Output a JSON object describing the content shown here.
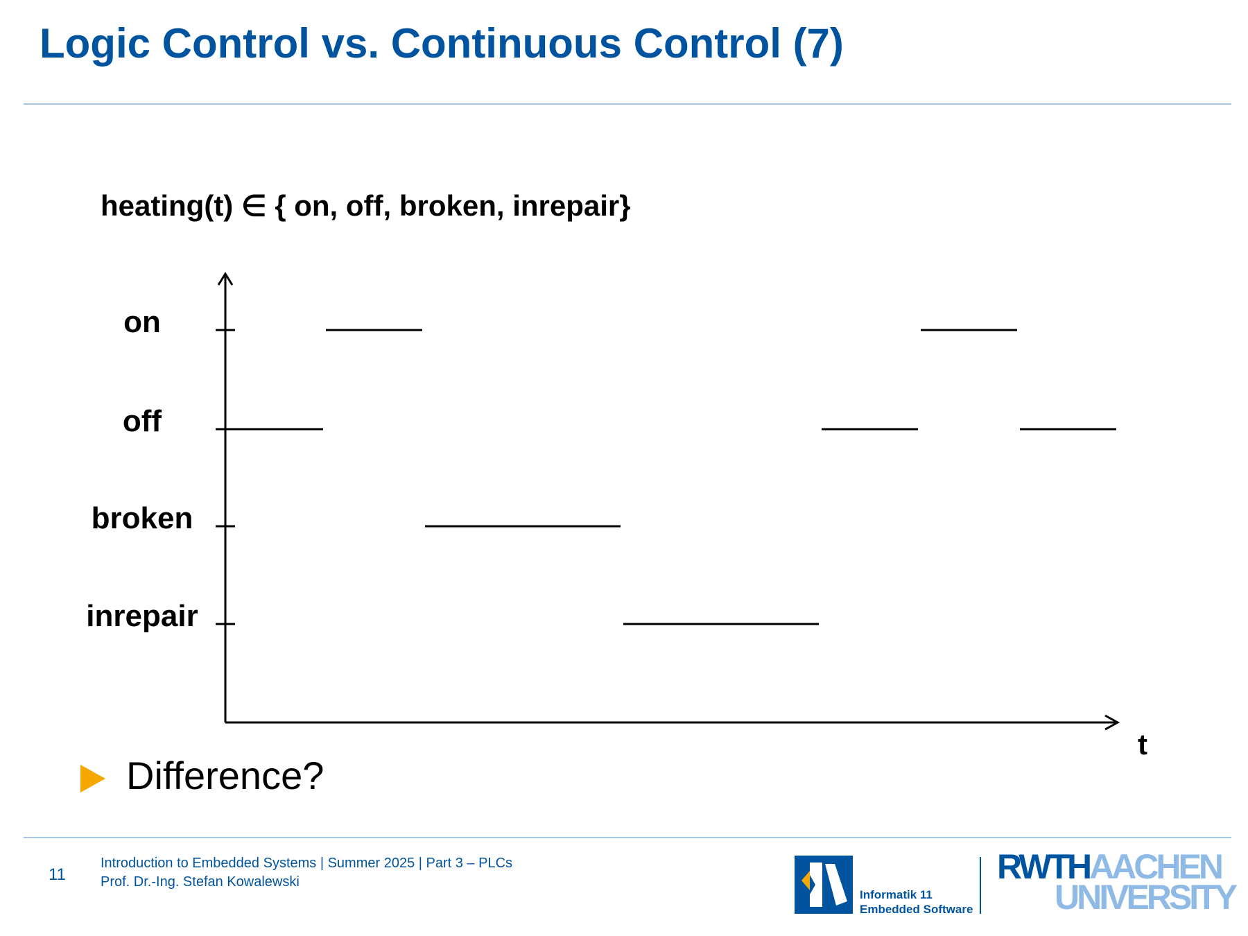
{
  "slide": {
    "title": "Logic Control vs. Continuous Control (7)",
    "formula": "heating(t) ∈ { on, off, broken, inrepair}",
    "bullet_text": "Difference?"
  },
  "footer": {
    "page_number": "11",
    "course_line": "Introduction to Embedded Systems | Summer 2025 | Part 3 – PLCs",
    "author_line": "Prof. Dr.-Ing. Stefan Kowalewski",
    "institute_line1": "Informatik 11",
    "institute_line2": "Embedded Software",
    "university_word1": "RWTH",
    "university_word2": "AACHEN",
    "university_word3": "UNIVERSITY"
  },
  "colors": {
    "title": "#00549f",
    "rule": "#a6c6e8",
    "bullet": "#f5a800",
    "rwth_light": "#8ebae5"
  },
  "chart_data": {
    "type": "line",
    "step": true,
    "xlabel": "t",
    "ylabel": "",
    "categories": [
      "on",
      "off",
      "broken",
      "inrepair"
    ],
    "segments": [
      {
        "state": "off",
        "t_start": 0,
        "t_end": 1
      },
      {
        "state": "on",
        "t_start": 1,
        "t_end": 2
      },
      {
        "state": "broken",
        "t_start": 2,
        "t_end": 4
      },
      {
        "state": "inrepair",
        "t_start": 4,
        "t_end": 6
      },
      {
        "state": "off",
        "t_start": 6,
        "t_end": 7
      },
      {
        "state": "on",
        "t_start": 7,
        "t_end": 8
      },
      {
        "state": "off",
        "t_start": 8,
        "t_end": 9
      }
    ],
    "grid": false
  }
}
